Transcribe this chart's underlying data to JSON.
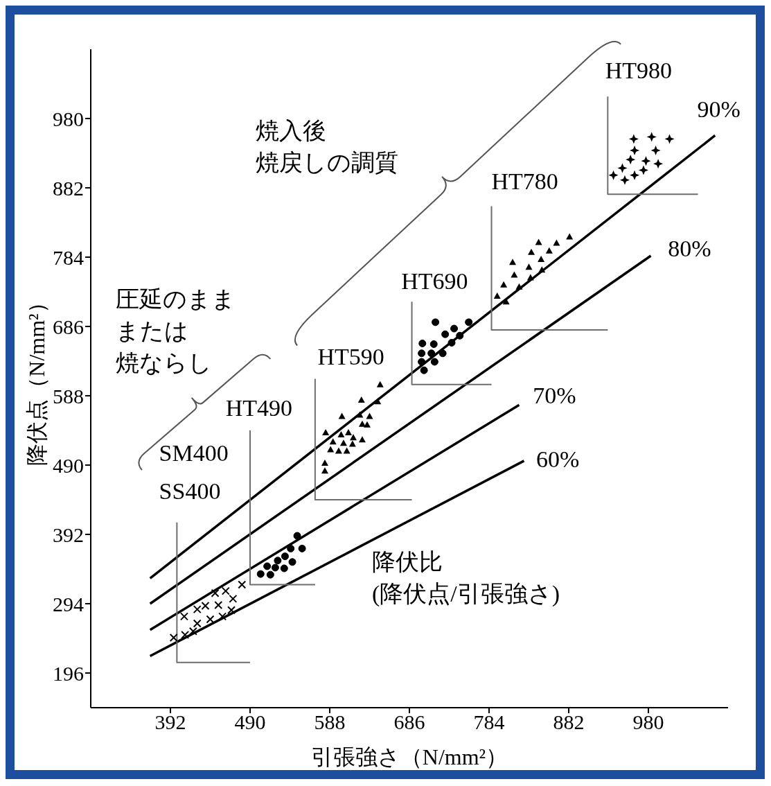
{
  "chart_data": {
    "type": "scatter",
    "xlabel": "引張強さ（N/mm²）",
    "ylabel": "降伏点（N/mm²）",
    "xlim": [
      294,
      1078
    ],
    "ylim": [
      147,
      1078
    ],
    "xticks": [
      392,
      490,
      588,
      686,
      784,
      882,
      980
    ],
    "yticks": [
      196,
      294,
      392,
      490,
      588,
      686,
      784,
      882,
      980
    ],
    "grid": false,
    "legend": false,
    "series": [
      {
        "marker": "cross",
        "color": "#000000",
        "x": [
          480,
          460,
          447,
          469,
          435,
          425,
          451,
          467,
          409,
          441,
          456,
          425,
          420,
          410,
          396
        ],
        "values": [
          321,
          312,
          309,
          301,
          291,
          286,
          292,
          285,
          276,
          272,
          276,
          266,
          255,
          250,
          246
        ]
      },
      {
        "marker": "circle",
        "color": "#000000",
        "x": [
          548,
          554,
          540,
          533,
          542,
          524,
          532,
          521,
          511,
          503,
          515
        ],
        "values": [
          390,
          372,
          372,
          361,
          353,
          355,
          344,
          345,
          347,
          336,
          335
        ]
      },
      {
        "marker": "triangle",
        "color": "#000000",
        "x": [
          650,
          627,
          647,
          603,
          625,
          637,
          628,
          634,
          583,
          602,
          611,
          617,
          628,
          592,
          605,
          616,
          589,
          599,
          609,
          582,
          582
        ],
        "values": [
          604,
          582,
          580,
          559,
          561,
          559,
          548,
          547,
          536,
          533,
          536,
          529,
          526,
          523,
          521,
          520,
          512,
          510,
          510,
          493,
          482
        ]
      },
      {
        "marker": "circle",
        "color": "#000000",
        "x": [
          718,
          759,
          741,
          730,
          748,
          738,
          702,
          716,
          701,
          713,
          727,
          701,
          717,
          704
        ],
        "values": [
          692,
          692,
          683,
          675,
          673,
          663,
          662,
          661,
          648,
          648,
          648,
          636,
          636,
          624
        ]
      },
      {
        "marker": "triangle",
        "color": "#000000",
        "x": [
          883,
          845,
          867,
          836,
          858,
          813,
          848,
          833,
          815,
          849,
          835,
          802,
          821,
          794,
          805
        ],
        "values": [
          813,
          805,
          804,
          791,
          793,
          777,
          781,
          770,
          759,
          766,
          755,
          745,
          742,
          729,
          721
        ]
      },
      {
        "marker": "star",
        "color": "#000000",
        "x": [
          962,
          984,
          1006,
          963,
          989,
          958,
          977,
          992,
          948,
          974,
          937,
          963,
          951
        ],
        "values": [
          951,
          954,
          951,
          935,
          935,
          922,
          920,
          916,
          910,
          907,
          900,
          900,
          893
        ]
      },
      {
        "type": "line",
        "color": "#000000",
        "x": [
          367,
          1062
        ],
        "values": [
          330,
          956
        ]
      },
      {
        "type": "line",
        "color": "#000000",
        "x": [
          367,
          983
        ],
        "values": [
          294,
          786
        ]
      },
      {
        "type": "line",
        "color": "#000000",
        "x": [
          367,
          821
        ],
        "values": [
          257,
          575
        ]
      },
      {
        "type": "line",
        "color": "#000000",
        "x": [
          367,
          827
        ],
        "values": [
          220,
          496
        ]
      },
      {
        "type": "line",
        "color": "#6e6e6e",
        "x": [
          400,
          400,
          490
        ],
        "values": [
          409,
          211,
          211
        ]
      },
      {
        "type": "line",
        "color": "#6e6e6e",
        "x": [
          490,
          490,
          570
        ],
        "values": [
          539,
          321,
          321
        ]
      },
      {
        "type": "line",
        "color": "#6e6e6e",
        "x": [
          570,
          570,
          689
        ],
        "values": [
          612,
          441,
          441
        ]
      },
      {
        "type": "line",
        "color": "#6e6e6e",
        "x": [
          689,
          689,
          787
        ],
        "values": [
          721,
          604,
          604
        ]
      },
      {
        "type": "line",
        "color": "#6e6e6e",
        "x": [
          787,
          787,
          930
        ],
        "values": [
          856,
          681,
          681
        ]
      },
      {
        "type": "line",
        "color": "#6e6e6e",
        "x": [
          930,
          930,
          1041
        ],
        "values": [
          1011,
          873,
          873
        ]
      }
    ],
    "annotations": [
      "SM400",
      "SS400",
      "HT490",
      "HT590",
      "HT690",
      "HT780",
      "HT980",
      "90%",
      "80%",
      "70%",
      "60%",
      "焼入後焼戻しの調質",
      "圧延のまままたは焼ならし",
      "降伏比(降伏点/引張強さ)"
    ]
  }
}
